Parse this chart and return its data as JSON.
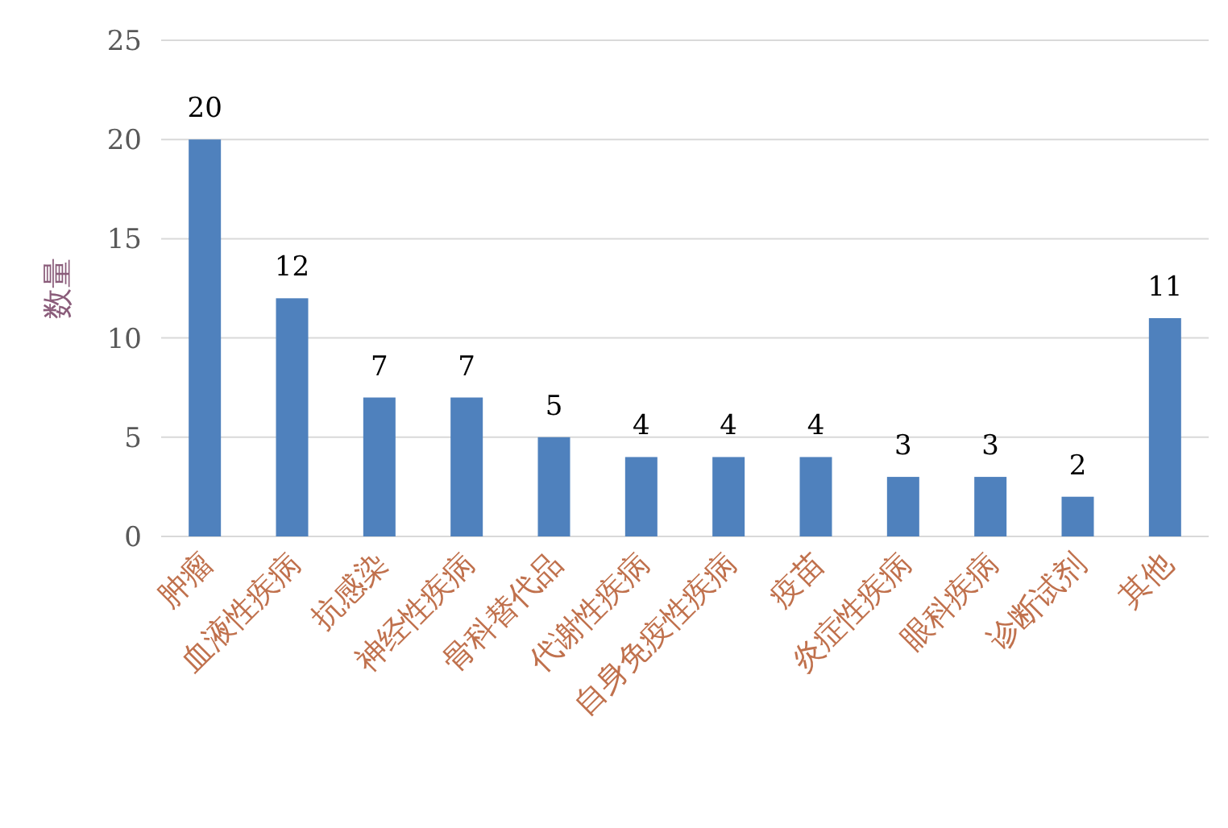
{
  "chart_data": {
    "type": "bar",
    "ylabel": "数量",
    "categories": [
      "肿瘤",
      "血液性疾病",
      "抗感染",
      "神经性疾病",
      "骨科替代品",
      "代谢性疾病",
      "自身免疫性疾病",
      "疫苗",
      "炎症性疾病",
      "眼科疾病",
      "诊断试剂",
      "其他"
    ],
    "values": [
      20,
      12,
      7,
      7,
      5,
      4,
      4,
      4,
      3,
      3,
      2,
      11
    ],
    "color": "#4f81bd",
    "ylim": [
      0,
      25
    ],
    "yticks": [
      0,
      5,
      10,
      15,
      20,
      25
    ],
    "grid": "y",
    "data_labels": true
  }
}
